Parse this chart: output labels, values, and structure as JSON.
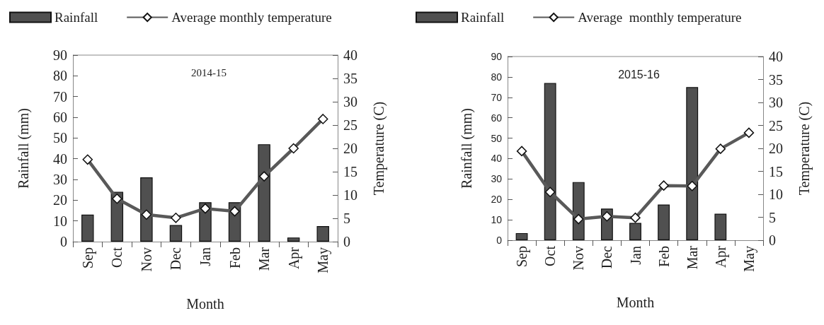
{
  "chart_data": [
    {
      "type": "bar",
      "title": "2014-15",
      "xlabel": "Month",
      "ylabel": "Rainfall (mm)",
      "y2label": "Temperature (C)",
      "categories": [
        "Sep",
        "Oct",
        "Nov",
        "Dec",
        "Jan",
        "Feb",
        "Mar",
        "Apr",
        "May"
      ],
      "series": [
        {
          "name": "Rainfall",
          "color": "#505050",
          "values": [
            13,
            24,
            31,
            8,
            19,
            19,
            47,
            2,
            7.5
          ]
        },
        {
          "name": "Average monthly temperature",
          "type": "line",
          "axis": "y2",
          "color": "#595959",
          "marker": "diamond",
          "values": [
            17.6,
            9.2,
            5.8,
            5.1,
            7.1,
            6.5,
            14,
            20,
            26.3
          ]
        }
      ],
      "ylim": [
        0,
        90
      ],
      "yticks": [
        0,
        10,
        20,
        30,
        40,
        50,
        60,
        70,
        80,
        90
      ],
      "y2lim": [
        0,
        40
      ],
      "y2ticks": [
        0,
        5,
        10,
        15,
        20,
        25,
        30,
        35,
        40
      ],
      "legend": "top",
      "grid": false
    },
    {
      "type": "bar",
      "title": "2015-16",
      "xlabel": "Month",
      "ylabel": "Rainfall (mm)",
      "y2label": "Temperature (C)",
      "categories": [
        "Sep",
        "Oct",
        "Nov",
        "Dec",
        "Jan",
        "Feb",
        "Mar",
        "Apr",
        "May"
      ],
      "series": [
        {
          "name": "Rainfall",
          "color": "#505050",
          "values": [
            3.5,
            77,
            28.5,
            15.5,
            8.5,
            17.5,
            75,
            13,
            null
          ]
        },
        {
          "name": "Average  monthly temperature",
          "type": "line",
          "axis": "y2",
          "color": "#595959",
          "marker": "diamond",
          "values": [
            19.4,
            10.5,
            4.6,
            5.2,
            4.9,
            11.9,
            11.8,
            19.9,
            23.4
          ]
        }
      ],
      "ylim": [
        0,
        90
      ],
      "yticks": [
        0,
        10,
        20,
        30,
        40,
        50,
        60,
        70,
        80,
        90
      ],
      "y2lim": [
        0,
        40
      ],
      "y2ticks": [
        0,
        5,
        10,
        15,
        20,
        25,
        30,
        35,
        40
      ],
      "legend": "top",
      "grid": false
    }
  ]
}
